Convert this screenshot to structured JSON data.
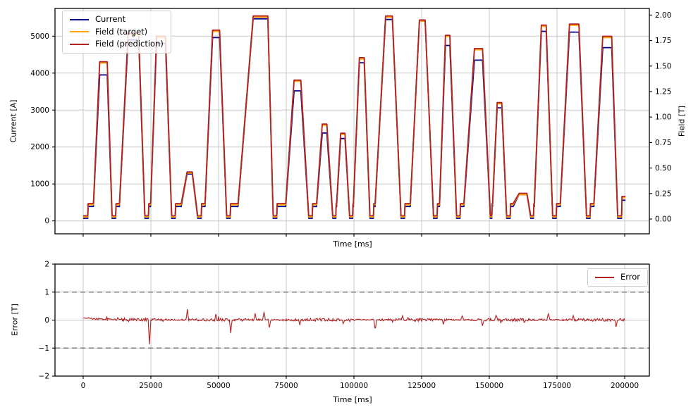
{
  "figure": {
    "type": "dual-panel-line-figure",
    "background": "#ffffff"
  },
  "colors": {
    "current": "#00008b",
    "field_target": "#ffa500",
    "field_prediction": "#b22222",
    "error": "#b22222",
    "grid": "#c9c9c9",
    "spine": "#000000",
    "dashed_limit": "#7f7f7f",
    "legend_border": "#cccccc"
  },
  "chart_data": [
    {
      "id": "top",
      "type": "line",
      "title": "",
      "xlabel": "Time [ms]",
      "ylabel": "Current [A]",
      "ylabel_right": "Field [T]",
      "xlim": [
        -10400,
        209100
      ],
      "ylim_left": [
        -350,
        5750
      ],
      "ylim_right": [
        -0.145,
        2.065
      ],
      "grid": "on",
      "xticks": [
        0,
        25000,
        50000,
        75000,
        100000,
        125000,
        150000,
        175000,
        200000
      ],
      "xtick_labels_visible": false,
      "yticks_left": [
        0,
        1000,
        2000,
        3000,
        4000,
        5000
      ],
      "ytick_left_labels": [
        "0",
        "1000",
        "2000",
        "3000",
        "4000",
        "5000"
      ],
      "yticks_right": [
        0.0,
        0.25,
        0.5,
        0.75,
        1.0,
        1.25,
        1.5,
        1.75,
        2.0
      ],
      "ytick_right_labels": [
        "0.00",
        "0.25",
        "0.50",
        "0.75",
        "1.00",
        "1.25",
        "1.50",
        "1.75",
        "2.00"
      ],
      "legend": {
        "loc": "upper left",
        "entries": [
          {
            "label": "Current",
            "color": "#00008b"
          },
          {
            "label": "Field (target)",
            "color": "#ffa500"
          },
          {
            "label": "Field (prediction)",
            "color": "#b22222"
          }
        ]
      },
      "series_info": [
        {
          "name": "Current",
          "axis": "left",
          "color": "#00008b"
        },
        {
          "name": "Field (target)",
          "axis": "right",
          "color": "#ffa500"
        },
        {
          "name": "Field (prediction)",
          "axis": "right",
          "color": "#b22222"
        }
      ],
      "baseline": {
        "field_low": 0.02,
        "field_shelf": 0.14,
        "current_low": 70,
        "current_shelf": 390,
        "low_dwell_ms": 1300,
        "first_shelf_start": 1700,
        "prediction_offset": 0.012
      },
      "pulses": [
        {
          "t": [
            3800,
            6100,
            8900,
            10700
          ],
          "field": 1.53,
          "current": 3950
        },
        {
          "t": [
            13400,
            16600,
            20500,
            22800
          ],
          "field": 1.81,
          "current": 4900
        },
        {
          "t": [
            24900,
            27100,
            30400,
            32700
          ],
          "field": 1.78,
          "current": 4800
        },
        {
          "t": [
            36200,
            38400,
            40300,
            42300
          ],
          "field": 0.45,
          "current": 1270
        },
        {
          "t": [
            45000,
            47800,
            50400,
            53000
          ],
          "field": 1.84,
          "current": 4960
        },
        {
          "t": [
            57200,
            62800,
            68200,
            70200
          ],
          "field": 1.98,
          "current": 5470
        },
        {
          "t": [
            74800,
            77900,
            80400,
            83300
          ],
          "field": 1.35,
          "current": 3520
        },
        {
          "t": [
            86200,
            88300,
            90000,
            92200
          ],
          "field": 0.92,
          "current": 2380
        },
        {
          "t": [
            93600,
            95100,
            96700,
            98400
          ],
          "field": 0.83,
          "current": 2230
        },
        {
          "t": [
            99800,
            102000,
            103800,
            105900
          ],
          "field": 1.57,
          "current": 4280
        },
        {
          "t": [
            107800,
            111700,
            114200,
            117400
          ],
          "field": 1.98,
          "current": 5450
        },
        {
          "t": [
            120800,
            124200,
            126300,
            129400
          ],
          "field": 1.94,
          "current": 5420
        },
        {
          "t": [
            131600,
            133800,
            135400,
            137900
          ],
          "field": 1.79,
          "current": 4750
        },
        {
          "t": [
            140600,
            144500,
            147500,
            150400
          ],
          "field": 1.66,
          "current": 4350
        },
        {
          "t": [
            151200,
            152900,
            154600,
            156400
          ],
          "field": 1.13,
          "current": 3060
        },
        {
          "t": [
            158800,
            161000,
            163900,
            165300
          ],
          "field": 0.24,
          "current": 710
        },
        {
          "t": [
            166600,
            169200,
            171000,
            173400
          ],
          "field": 1.89,
          "current": 5130
        },
        {
          "t": [
            176200,
            179600,
            183100,
            185900
          ],
          "field": 1.9,
          "current": 5110
        },
        {
          "t": [
            188600,
            191900,
            195200,
            197400
          ],
          "field": 1.78,
          "current": 4690
        }
      ],
      "tail": {
        "t": 199000,
        "field": 0.21,
        "current": 560,
        "t_end": 200300
      }
    },
    {
      "id": "bottom",
      "type": "line",
      "title": "",
      "xlabel": "Time [ms]",
      "ylabel": "Error [T]",
      "xlim": [
        -10400,
        209100
      ],
      "ylim": [
        -2,
        2
      ],
      "grid": "on",
      "grid_y": [
        -1,
        0,
        1
      ],
      "xticks": [
        0,
        25000,
        50000,
        75000,
        100000,
        125000,
        150000,
        175000,
        200000
      ],
      "xtick_labels": [
        "0",
        "25000",
        "50000",
        "75000",
        "100000",
        "125000",
        "150000",
        "175000",
        "200000"
      ],
      "yticks": [
        -2,
        -1,
        0,
        1,
        2
      ],
      "ytick_labels": [
        "−2",
        "−1",
        "0",
        "1",
        "2"
      ],
      "hlines": [
        {
          "y": 1,
          "style": "dashed",
          "color": "#7f7f7f"
        },
        {
          "y": -1,
          "style": "dashed",
          "color": "#7f7f7f"
        }
      ],
      "legend": {
        "loc": "upper right",
        "entries": [
          {
            "label": "Error",
            "color": "#b22222"
          }
        ]
      },
      "series": {
        "name": "Error",
        "t_range": [
          0,
          200200
        ],
        "step_ms": 250,
        "noise_amp": 0.038,
        "start_offset": 0.07,
        "spikes": [
          [
            24500,
            -0.85
          ],
          [
            38500,
            0.35
          ],
          [
            49000,
            0.18
          ],
          [
            54500,
            -0.5
          ],
          [
            63500,
            0.2
          ],
          [
            66800,
            0.32
          ],
          [
            68800,
            -0.3
          ],
          [
            80000,
            -0.15
          ],
          [
            96000,
            -0.12
          ],
          [
            107900,
            -0.4
          ],
          [
            118000,
            0.12
          ],
          [
            133000,
            -0.14
          ],
          [
            140000,
            0.15
          ],
          [
            147500,
            -0.2
          ],
          [
            152500,
            0.16
          ],
          [
            163000,
            -0.12
          ],
          [
            171800,
            0.24
          ],
          [
            181000,
            0.14
          ],
          [
            196800,
            -0.28
          ]
        ]
      }
    }
  ]
}
